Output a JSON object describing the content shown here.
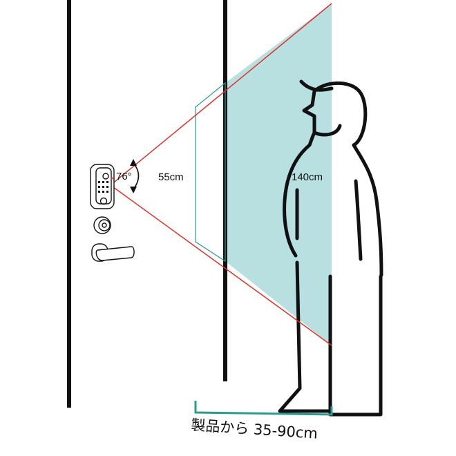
{
  "labels": {
    "angle": "76°",
    "near_height": "55cm",
    "far_height": "140cm",
    "distance": "製品から 35-90cm"
  },
  "colors": {
    "line": "#111111",
    "view_cone": "#e0312b",
    "fill": "#b9e0e0",
    "bracket": "#2a9a8f"
  },
  "icons": [
    "smart-lock-icon",
    "deadbolt-icon",
    "lever-handle-icon",
    "person-figure-icon"
  ]
}
